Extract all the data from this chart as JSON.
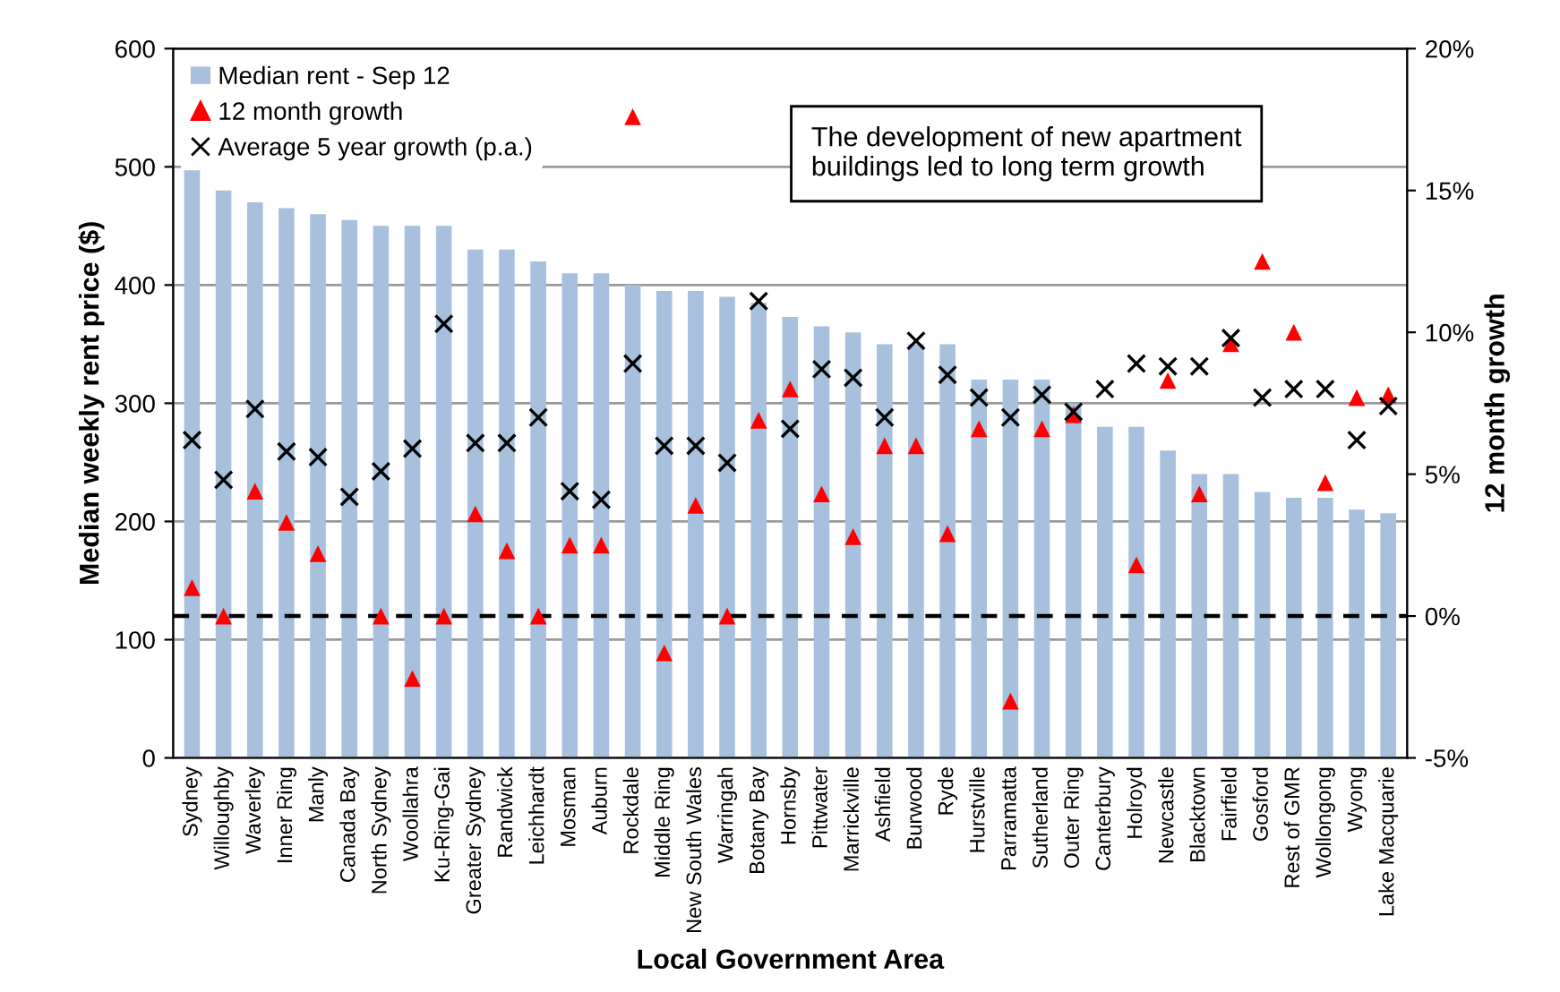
{
  "chart_data": {
    "type": "bar",
    "xlabel": "Local Government Area",
    "ylabel": "Median weekly rent price ($)",
    "y2label": "12 month growth",
    "categories": [
      "Sydney",
      "Willoughby",
      "Waverley",
      "Inner Ring",
      "Manly",
      "Canada Bay",
      "North Sydney",
      "Woollahra",
      "Ku-Ring-Gai",
      "Greater Sydney",
      "Randwick",
      "Leichhardt",
      "Mosman",
      "Auburn",
      "Rockdale",
      "Middle Ring",
      "New South Wales",
      "Warringah",
      "Botany Bay",
      "Hornsby",
      "Pittwater",
      "Marrickville",
      "Ashfield",
      "Burwood",
      "Ryde",
      "Hurstville",
      "Parramatta",
      "Sutherland",
      "Outer Ring",
      "Canterbury",
      "Holroyd",
      "Newcastle",
      "Blacktown",
      "Fairfield",
      "Gosford",
      "Rest of GMR",
      "Wollongong",
      "Wyong",
      "Lake Macquarie"
    ],
    "series": [
      {
        "name": "Median rent - Sep 12",
        "color": "#a7c0de",
        "values": [
          500,
          480,
          470,
          465,
          460,
          455,
          450,
          450,
          450,
          430,
          430,
          420,
          410,
          410,
          400,
          395,
          395,
          390,
          385,
          373,
          365,
          360,
          350,
          350,
          350,
          320,
          320,
          320,
          300,
          280,
          280,
          260,
          240,
          240,
          225,
          220,
          220,
          210,
          207
        ]
      },
      {
        "name": "12 month growth",
        "type": "scatter",
        "axis": "y2",
        "marker": "triangle",
        "color": "#ff0000",
        "values": [
          1.0,
          0,
          4.4,
          3.3,
          2.2,
          null,
          0,
          -2.2,
          0,
          3.6,
          2.3,
          0,
          2.5,
          2.5,
          17.6,
          -1.3,
          3.9,
          0,
          6.9,
          8.0,
          4.3,
          2.8,
          6.0,
          6.0,
          2.9,
          6.6,
          -3.0,
          6.6,
          7.1,
          null,
          1.8,
          8.3,
          4.3,
          9.6,
          12.5,
          10.0,
          4.7,
          7.7,
          7.8
        ]
      },
      {
        "name": "Average 5 year growth (p.a.)",
        "type": "scatter",
        "axis": "y2",
        "marker": "cross",
        "color": "#000000",
        "values": [
          6.2,
          4.8,
          7.3,
          5.8,
          5.6,
          4.2,
          5.1,
          5.9,
          10.3,
          6.1,
          6.1,
          7.0,
          4.4,
          4.1,
          8.9,
          6.0,
          6.0,
          5.4,
          11.1,
          6.6,
          8.7,
          8.4,
          7.0,
          9.7,
          8.5,
          7.7,
          7.0,
          7.8,
          7.2,
          8.0,
          8.9,
          8.8,
          8.8,
          9.8,
          7.7,
          8.0,
          8.0,
          6.2,
          7.4
        ]
      }
    ],
    "ylim": [
      0,
      600
    ],
    "yticks": [
      0,
      100,
      200,
      300,
      400,
      500,
      600
    ],
    "y2lim": [
      -5,
      20
    ],
    "y2ticks": [
      {
        "value": -5,
        "label": "-5%"
      },
      {
        "value": 0,
        "label": "0%"
      },
      {
        "value": 5,
        "label": "5%"
      },
      {
        "value": 10,
        "label": "10%"
      },
      {
        "value": 15,
        "label": "15%"
      },
      {
        "value": 20,
        "label": "20%"
      }
    ],
    "ref_lines": [
      {
        "axis": "y2",
        "value": 0,
        "color": "#000000",
        "line_style": "dashed"
      }
    ],
    "annotations": [
      "The development of new apartment buildings led to long term growth"
    ],
    "grid": "y",
    "legend": "top left"
  }
}
